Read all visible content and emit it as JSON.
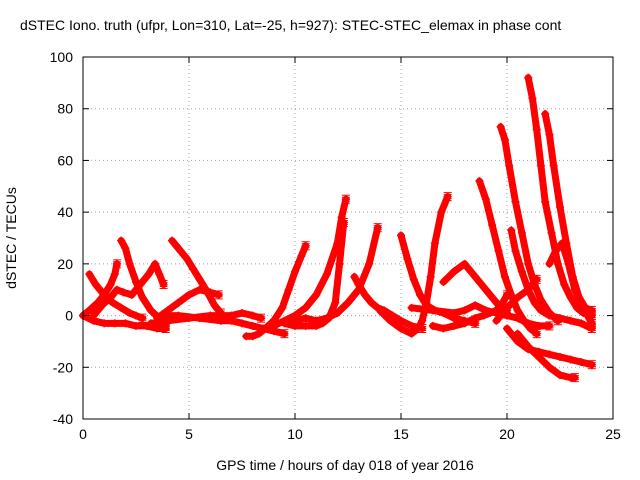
{
  "chart_data": {
    "type": "scatter",
    "title": "dSTEC Iono. truth (ufpr, Lon=310, Lat=-25, h=927): STEC-STEC_elemax in phase cont",
    "xlabel": "GPS time / hours of day 018 of year 2016",
    "ylabel": "dSTEC  / TECUs",
    "xlim": [
      0,
      25
    ],
    "ylim": [
      -40,
      100
    ],
    "xticks": [
      "0",
      "5",
      "10",
      "15",
      "20",
      "25"
    ],
    "yticks": [
      "-40",
      "-20",
      "0",
      "20",
      "40",
      "60",
      "80",
      "100"
    ],
    "grid": true,
    "marker": "+",
    "color": "#ff0000",
    "series": [
      {
        "x": [
          0.0,
          0.3,
          0.7,
          1.0,
          1.3,
          1.5,
          1.6
        ],
        "y": [
          0,
          2,
          5,
          8,
          12,
          16,
          20
        ]
      },
      {
        "x": [
          0.3,
          0.6,
          1.0,
          1.4,
          1.8,
          2.2,
          2.5,
          2.8
        ],
        "y": [
          16,
          12,
          8,
          5,
          3,
          1,
          0,
          -1
        ]
      },
      {
        "x": [
          0.0,
          0.5,
          1.0,
          1.5,
          2.0,
          2.5,
          3.0,
          3.5,
          3.9
        ],
        "y": [
          0,
          -2,
          -3,
          -3,
          -3,
          -4,
          -4,
          -5,
          -5
        ]
      },
      {
        "x": [
          1.8,
          2.0,
          2.2,
          2.5,
          2.8,
          3.2,
          3.6,
          3.9
        ],
        "y": [
          29,
          26,
          20,
          13,
          7,
          2,
          -1,
          -4
        ]
      },
      {
        "x": [
          0.5,
          0.9,
          1.3,
          1.6,
          1.9,
          2.3,
          2.7,
          3.1,
          3.4,
          3.6,
          3.8
        ],
        "y": [
          0,
          4,
          7,
          10,
          9,
          8,
          12,
          16,
          20,
          16,
          12
        ]
      },
      {
        "x": [
          4.2,
          4.4,
          4.6,
          4.9,
          5.2,
          5.5,
          5.8,
          6.2,
          6.5
        ],
        "y": [
          29,
          27,
          25,
          22,
          18,
          14,
          10,
          4,
          1
        ]
      },
      {
        "x": [
          3.5,
          4.0,
          4.5,
          5.0,
          5.5,
          6.0,
          6.4
        ],
        "y": [
          -1,
          2,
          5,
          8,
          10,
          9,
          8
        ]
      },
      {
        "x": [
          3.8,
          4.5,
          5.5,
          6.5,
          7.0,
          7.5,
          8.0,
          8.5,
          9.0,
          9.5
        ],
        "y": [
          0,
          0,
          -1,
          -2,
          -2,
          -3,
          -4,
          -5,
          -6,
          -7
        ]
      },
      {
        "x": [
          7.7,
          8.0,
          8.3,
          8.6,
          9.0,
          9.4,
          9.7,
          10.0,
          10.3,
          10.5
        ],
        "y": [
          -8,
          -8,
          -7,
          -5,
          -2,
          3,
          10,
          17,
          23,
          27
        ]
      },
      {
        "x": [
          3.2,
          4.0,
          5.0,
          6.0,
          7.0,
          7.5,
          8.0,
          8.4
        ],
        "y": [
          -3,
          -2,
          -1,
          0,
          0,
          1,
          0,
          -1
        ]
      },
      {
        "x": [
          9.5,
          10.0,
          10.5,
          11.0,
          11.3,
          11.6,
          11.9,
          12.1,
          12.3
        ],
        "y": [
          -3,
          -4,
          -4,
          -4,
          -3,
          -1,
          5,
          20,
          36
        ]
      },
      {
        "x": [
          9.0,
          9.5,
          10.0,
          10.5,
          11.0,
          11.5,
          12.0,
          12.2,
          12.4
        ],
        "y": [
          -4,
          -2,
          0,
          3,
          8,
          16,
          28,
          38,
          45
        ]
      },
      {
        "x": [
          10.0,
          10.5,
          11.0,
          11.5,
          12.0,
          12.5,
          13.0,
          13.5,
          13.9
        ],
        "y": [
          -2,
          -1,
          -2,
          -1,
          1,
          5,
          10,
          20,
          34
        ]
      },
      {
        "x": [
          12.8,
          13.0,
          13.3,
          13.6,
          13.9,
          14.2,
          14.6,
          15.0,
          15.5,
          16.0
        ],
        "y": [
          15,
          12,
          8,
          5,
          3,
          2,
          0,
          -2,
          -4,
          -5
        ]
      },
      {
        "x": [
          14.0,
          14.5,
          15.0,
          15.5,
          15.8,
          16.0,
          16.2,
          16.4,
          16.6,
          16.9,
          17.2
        ],
        "y": [
          2,
          -2,
          -5,
          -7,
          -5,
          -2,
          5,
          15,
          28,
          40,
          46
        ]
      },
      {
        "x": [
          15.0,
          15.3,
          15.6,
          15.9,
          16.2,
          16.6,
          17.0,
          17.5,
          18.0,
          18.5
        ],
        "y": [
          31,
          22,
          14,
          8,
          4,
          2,
          1,
          -1,
          -2,
          -3
        ]
      },
      {
        "x": [
          16.5,
          17.0,
          17.5,
          18.0,
          18.5,
          18.9,
          19.2,
          19.5,
          19.8,
          20.0
        ],
        "y": [
          -4,
          -5,
          -4,
          -3,
          -1,
          0,
          1,
          2,
          5,
          8
        ]
      },
      {
        "x": [
          17.0,
          17.5,
          18.0,
          18.5,
          19.0,
          19.5,
          19.8,
          20.0
        ],
        "y": [
          13,
          17,
          20,
          15,
          10,
          5,
          3,
          2
        ]
      },
      {
        "x": [
          18.7,
          19.0,
          19.3,
          19.6,
          19.9,
          20.2,
          20.5,
          20.8,
          21.1,
          21.4
        ],
        "y": [
          52,
          45,
          35,
          25,
          15,
          8,
          2,
          -2,
          -5,
          -7
        ]
      },
      {
        "x": [
          19.7,
          19.9,
          20.1,
          20.4,
          20.7,
          21.0,
          21.3,
          21.6,
          22.0,
          22.4
        ],
        "y": [
          73,
          68,
          58,
          44,
          32,
          20,
          12,
          6,
          1,
          -2
        ]
      },
      {
        "x": [
          20.2,
          20.4,
          20.7,
          21.0,
          21.3,
          21.6,
          22.0,
          22.5,
          23.0,
          23.5,
          24.0
        ],
        "y": [
          33,
          25,
          17,
          10,
          5,
          2,
          0,
          -1,
          -2,
          -3,
          -5
        ]
      },
      {
        "x": [
          21.0,
          21.2,
          21.4,
          21.6,
          21.8,
          22.1,
          22.4,
          22.7,
          23.0,
          23.3,
          23.6,
          24.0
        ],
        "y": [
          92,
          84,
          72,
          58,
          44,
          32,
          20,
          12,
          7,
          3,
          1,
          0
        ]
      },
      {
        "x": [
          21.8,
          22.0,
          22.2,
          22.5,
          22.8,
          23.1,
          23.4,
          23.7,
          24.0
        ],
        "y": [
          78,
          70,
          58,
          42,
          28,
          15,
          7,
          3,
          2
        ]
      },
      {
        "x": [
          20.0,
          20.5,
          21.0,
          21.5,
          22.0,
          22.5,
          23.0,
          23.5,
          24.0
        ],
        "y": [
          -5,
          -10,
          -13,
          -14,
          -15,
          -16,
          -17,
          -18,
          -19
        ]
      },
      {
        "x": [
          20.5,
          21.0,
          21.5,
          22.0,
          22.5,
          23.0,
          23.2
        ],
        "y": [
          -7,
          -12,
          -16,
          -20,
          -23,
          -24,
          -24
        ]
      },
      {
        "x": [
          22.0,
          22.3,
          22.6,
          22.9,
          23.2,
          23.6,
          24.0
        ],
        "y": [
          20,
          25,
          28,
          20,
          10,
          3,
          -3
        ]
      },
      {
        "x": [
          15.5,
          16.5,
          17.5,
          18.0,
          18.5,
          19.0,
          19.5,
          20.0,
          20.5,
          21.0,
          21.5,
          22.0
        ],
        "y": [
          3,
          2,
          1,
          2,
          4,
          2,
          1,
          0,
          -1,
          -3,
          -4,
          -4
        ]
      },
      {
        "x": [
          19.5,
          20.0,
          20.5,
          21.0,
          21.2,
          21.4
        ],
        "y": [
          -2,
          3,
          7,
          10,
          12,
          14
        ]
      }
    ]
  }
}
